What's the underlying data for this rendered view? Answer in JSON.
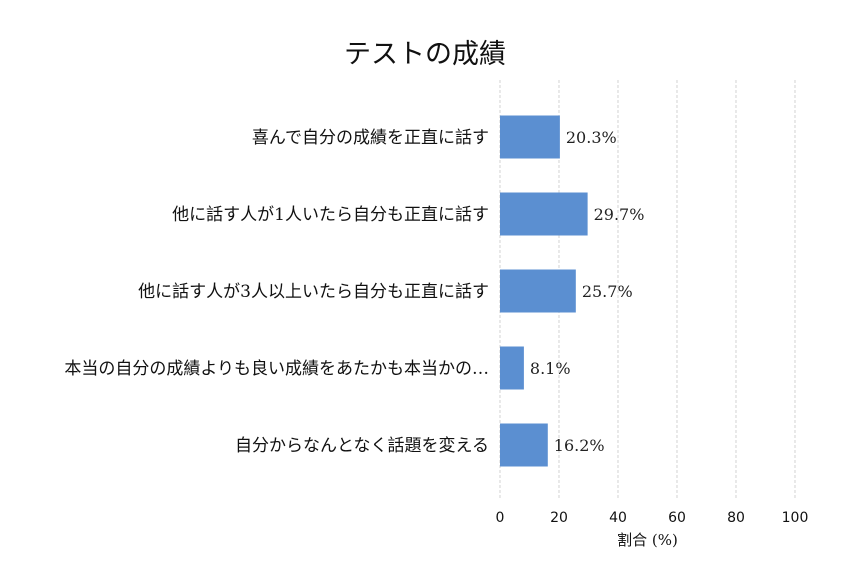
{
  "chart_data": {
    "type": "bar",
    "orientation": "horizontal",
    "title": "テストの成績",
    "xlabel": "割合 (%)",
    "ylabel": "",
    "xlim": [
      0,
      100
    ],
    "xticks": [
      0,
      20,
      40,
      60,
      80,
      100
    ],
    "grid": "vertical dashed",
    "categories": [
      "喜んで自分の成績を正直に話す",
      "他に話す人が1人いたら自分も正直に話す",
      "他に話す人が3人以上いたら自分も正直に話す",
      "本当の自分の成績よりも良い成績をあたかも本当かの…",
      "自分からなんとなく話題を変える"
    ],
    "values": [
      20.3,
      29.7,
      25.7,
      8.1,
      16.2
    ],
    "value_labels": [
      "20.3%",
      "29.7%",
      "25.7%",
      "8.1%",
      "16.2%"
    ],
    "bar_color": "#5b8fd1",
    "grid_color": "#c8c8c8"
  }
}
